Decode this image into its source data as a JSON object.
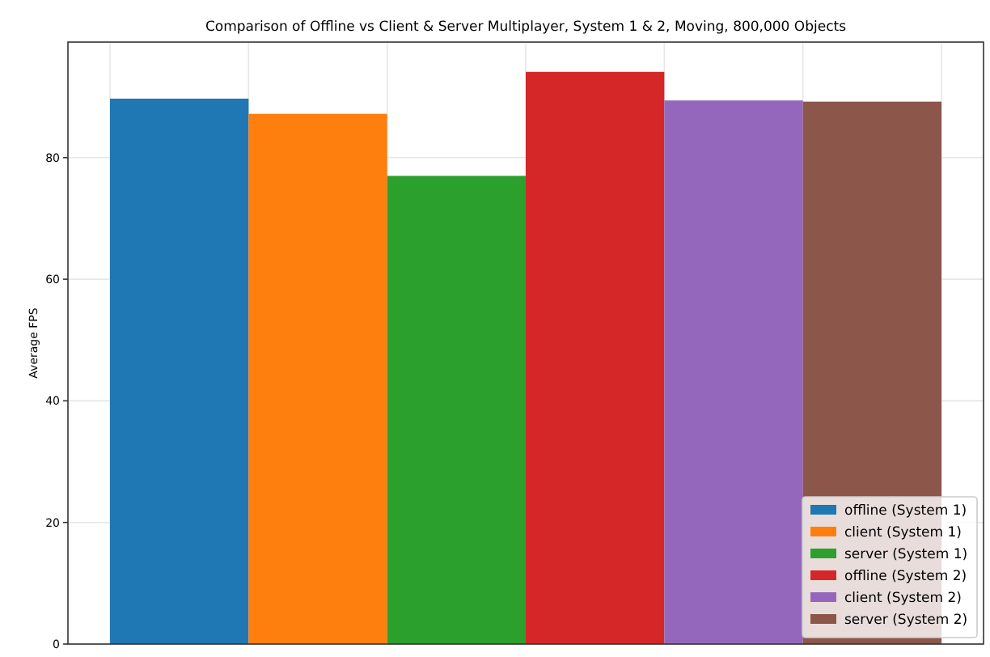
{
  "chart_data": {
    "type": "bar",
    "title": "Comparison of Offline vs Client & Server Multiplayer, System 1 & 2, Moving, 800,000 Objects",
    "ylabel": "Average FPS",
    "categories": [
      null
    ],
    "series": [
      {
        "name": "offline (System 1)",
        "color": "#1f77b4",
        "values": [
          89.7
        ]
      },
      {
        "name": "client (System 1)",
        "color": "#ff7f0e",
        "values": [
          87.2
        ]
      },
      {
        "name": "server (System 1)",
        "color": "#2ca02c",
        "values": [
          77.0
        ]
      },
      {
        "name": "offline (System 2)",
        "color": "#d62728",
        "values": [
          94.1
        ]
      },
      {
        "name": "client (System 2)",
        "color": "#9467bd",
        "values": [
          89.4
        ]
      },
      {
        "name": "server (System 2)",
        "color": "#8c564b",
        "values": [
          89.2
        ]
      }
    ],
    "ylim": [
      0,
      99
    ],
    "yticks": [
      0,
      20,
      40,
      60,
      80
    ],
    "grid": true,
    "legend": "bottom right"
  }
}
